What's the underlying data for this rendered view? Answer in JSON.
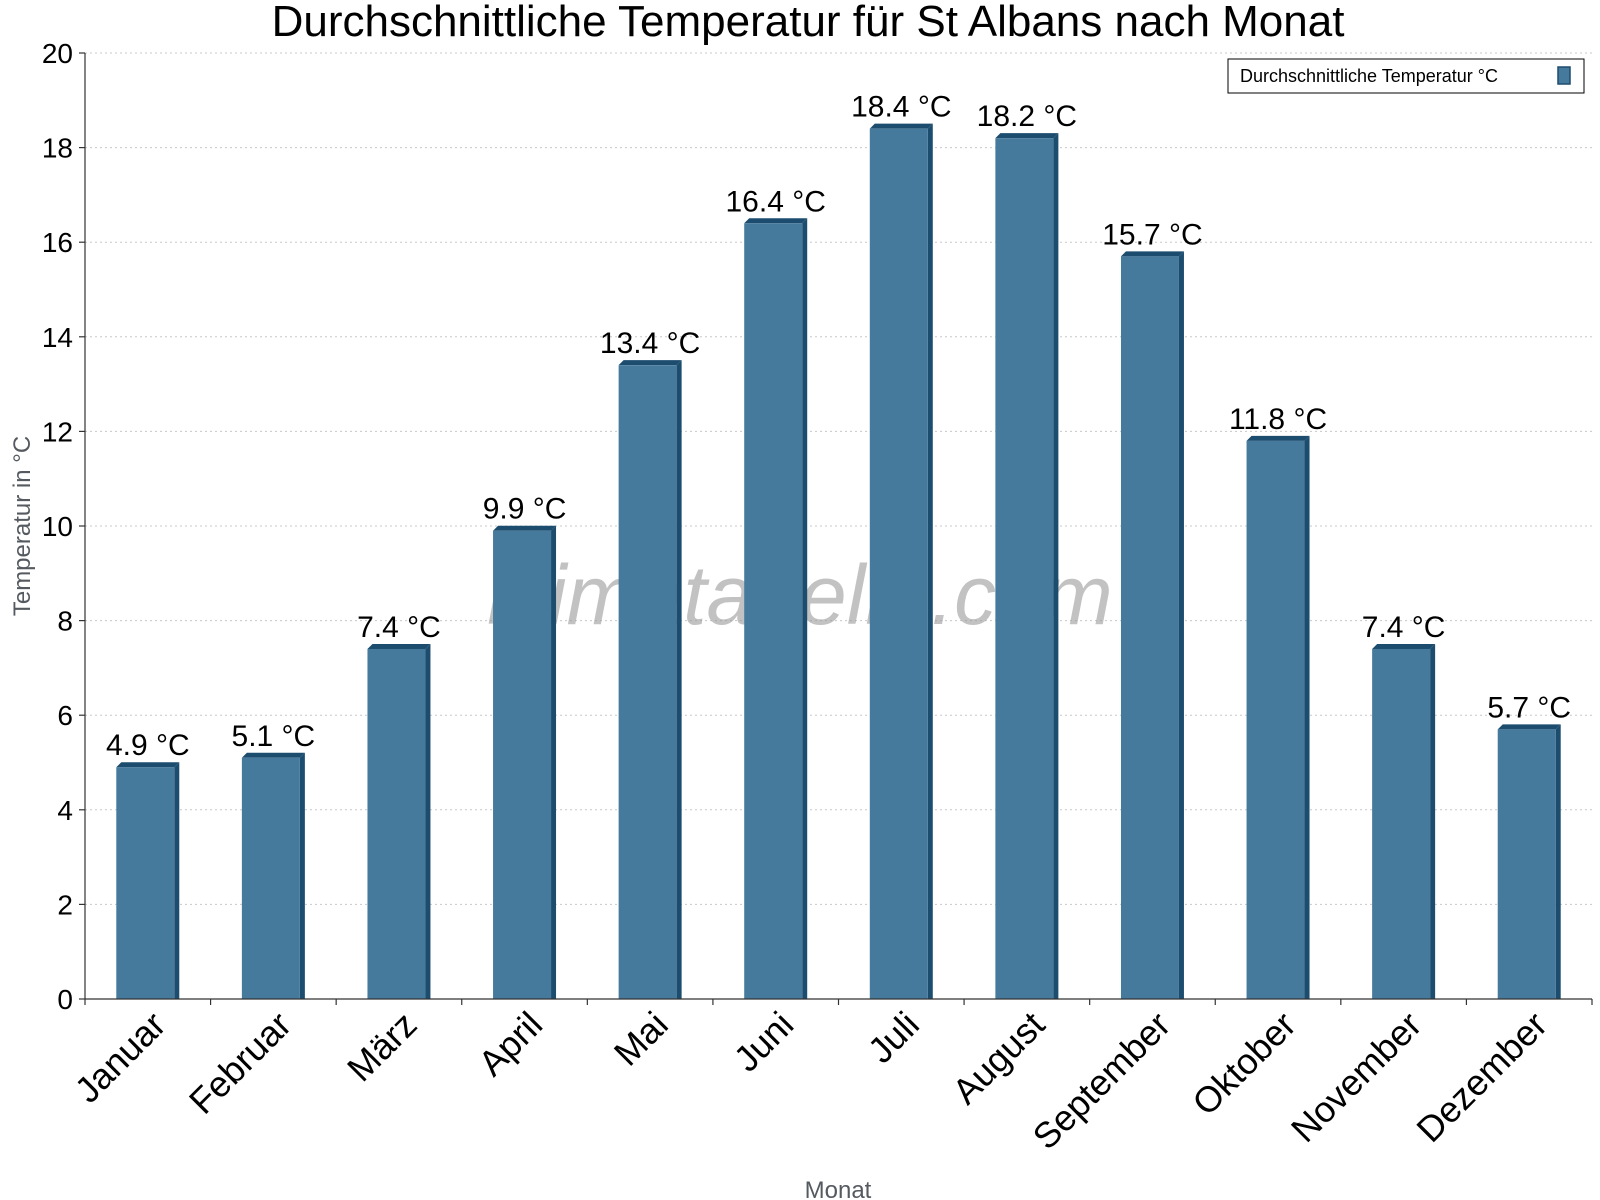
{
  "chart_data": {
    "type": "bar",
    "title": "Durchschnittliche Temperatur für St Albans nach Monat",
    "xlabel": "Monat",
    "ylabel": "Temperatur in °C",
    "ylim": [
      0,
      20
    ],
    "yticks": [
      0,
      2,
      4,
      6,
      8,
      10,
      12,
      14,
      16,
      18,
      20
    ],
    "grid": true,
    "legend_position": "top-right",
    "categories": [
      "Januar",
      "Februar",
      "März",
      "April",
      "Mai",
      "Juni",
      "Juli",
      "August",
      "September",
      "Oktober",
      "November",
      "Dezember"
    ],
    "series": [
      {
        "name": "Durchschnittliche Temperatur °C",
        "values": [
          4.9,
          5.1,
          7.4,
          9.9,
          13.4,
          16.4,
          18.4,
          18.2,
          15.7,
          11.8,
          7.4,
          5.7
        ],
        "labels": [
          "4.9 °C",
          "5.1 °C",
          "7.4 °C",
          "9.9 °C",
          "13.4 °C",
          "16.4 °C",
          "18.4 °C",
          "18.2 °C",
          "15.7 °C",
          "11.8 °C",
          "7.4 °C",
          "5.7 °C"
        ],
        "color": "#467a9c",
        "edge_color": "#1d4d6e"
      }
    ],
    "watermark": "klimatabelle.com"
  }
}
